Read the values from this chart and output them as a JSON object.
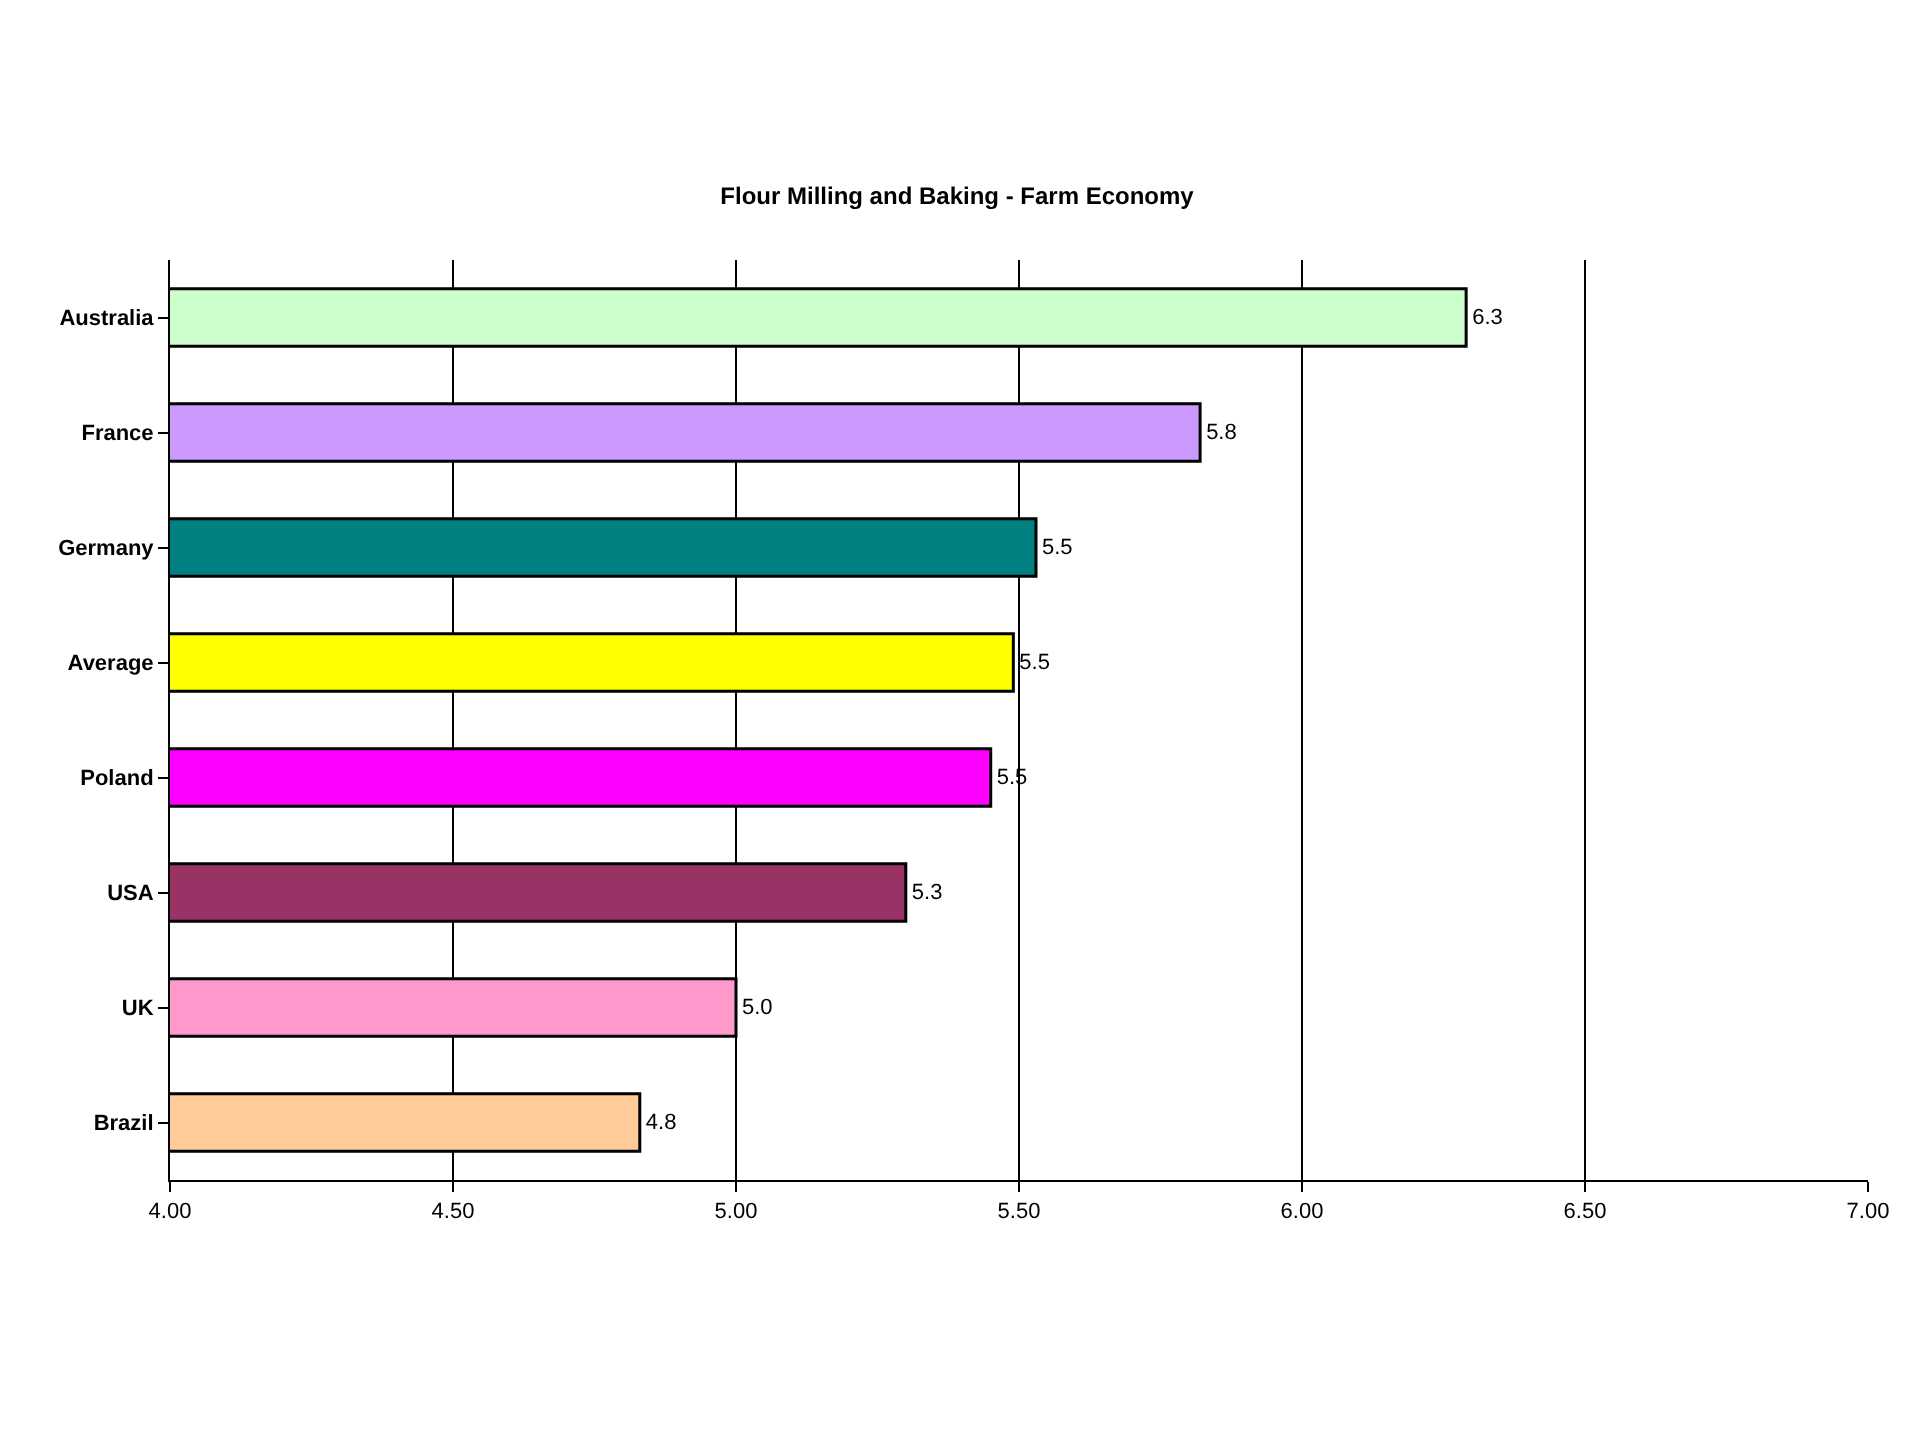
{
  "chart_data": {
    "type": "bar",
    "orientation": "horizontal",
    "title": "Flour Milling and Baking - Farm Economy",
    "categories": [
      "Australia",
      "France",
      "Germany",
      "Average",
      "Poland",
      "USA",
      "UK",
      "Brazil"
    ],
    "values": [
      6.29,
      5.82,
      5.53,
      5.49,
      5.45,
      5.3,
      5.0,
      4.83
    ],
    "value_labels": [
      "6.3",
      "5.8",
      "5.5",
      "5.5",
      "5.5",
      "5.3",
      "5.0",
      "4.8"
    ],
    "colors": [
      "#ccffcc",
      "#cc99ff",
      "#008080",
      "#ffff00",
      "#ff00ff",
      "#993366",
      "#ff99cc",
      "#ffcc99"
    ],
    "xlim": [
      4,
      7
    ],
    "xticks": [
      {
        "value": 4,
        "label": "4.00"
      },
      {
        "value": 4.5,
        "label": "4.50"
      },
      {
        "value": 5,
        "label": "5.00"
      },
      {
        "value": 5.5,
        "label": "5.50"
      },
      {
        "value": 6,
        "label": "6.00"
      },
      {
        "value": 6.5,
        "label": "6.50"
      },
      {
        "value": 7,
        "label": "7.00"
      }
    ],
    "grid": "x",
    "legend": false
  }
}
